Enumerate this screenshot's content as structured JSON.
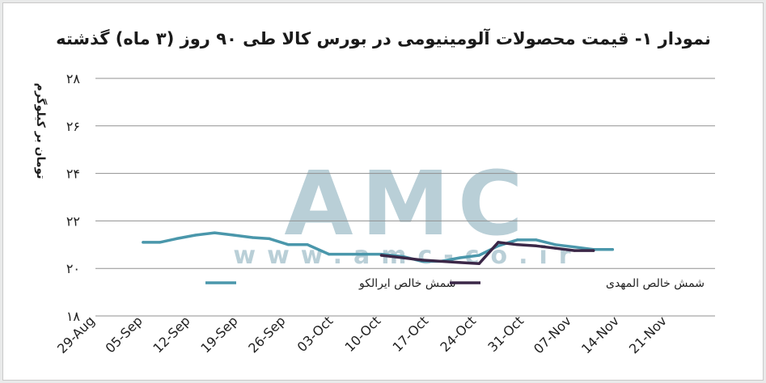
{
  "chart_data": {
    "type": "line",
    "title": "نمودار ۱- قیمت محصولات آلومینیومی در بورس کالا طی ۹۰ روز (۳ ماه) گذشته",
    "ylabel": "تومان بر کیلوگرم",
    "xlabel": "",
    "ylim": [
      18,
      28
    ],
    "yticks": [
      18,
      20,
      22,
      24,
      26,
      28
    ],
    "ytick_labels": [
      "۱۸",
      "۲۰",
      "۲۲",
      "۲۴",
      "۲۶",
      "۲۸"
    ],
    "x_tick_labels": [
      "29-Aug",
      "05-Sep",
      "12-Sep",
      "19-Sep",
      "26-Sep",
      "03-Oct",
      "10-Oct",
      "17-Oct",
      "24-Oct",
      "31-Oct",
      "07-Nov",
      "14-Nov",
      "21-Nov"
    ],
    "xlim": [
      0,
      13
    ],
    "grid": true,
    "legend_placement": "inside-bottom",
    "watermark": {
      "main": "AMC",
      "sub": "www.amc-co.ir"
    },
    "series": [
      {
        "name": "شمش خالص ایرالکو",
        "color": "#4a97ab",
        "points": [
          [
            1.0,
            21.1
          ],
          [
            1.35,
            21.1
          ],
          [
            1.7,
            21.25
          ],
          [
            2.1,
            21.4
          ],
          [
            2.5,
            21.5
          ],
          [
            2.9,
            21.4
          ],
          [
            3.3,
            21.3
          ],
          [
            3.65,
            21.25
          ],
          [
            4.05,
            21.0
          ],
          [
            4.45,
            21.0
          ],
          [
            4.9,
            20.6
          ],
          [
            5.4,
            20.6
          ],
          [
            6.0,
            20.6
          ],
          [
            6.45,
            20.5
          ],
          [
            6.85,
            20.3
          ],
          [
            7.25,
            20.3
          ],
          [
            7.65,
            20.45
          ],
          [
            8.05,
            20.55
          ],
          [
            8.45,
            20.95
          ],
          [
            8.85,
            21.2
          ],
          [
            9.25,
            21.2
          ],
          [
            9.65,
            21.0
          ],
          [
            10.05,
            20.9
          ],
          [
            10.45,
            20.8
          ],
          [
            10.85,
            20.8
          ]
        ]
      },
      {
        "name": "شمش خالص المهدی",
        "color": "#3b2747",
        "points": [
          [
            6.0,
            20.55
          ],
          [
            6.45,
            20.45
          ],
          [
            6.85,
            20.35
          ],
          [
            7.25,
            20.3
          ],
          [
            7.65,
            20.25
          ],
          [
            8.05,
            20.2
          ],
          [
            8.45,
            21.1
          ],
          [
            8.85,
            21.0
          ],
          [
            9.25,
            20.95
          ],
          [
            9.65,
            20.85
          ],
          [
            10.05,
            20.75
          ],
          [
            10.45,
            20.75
          ]
        ]
      }
    ]
  }
}
